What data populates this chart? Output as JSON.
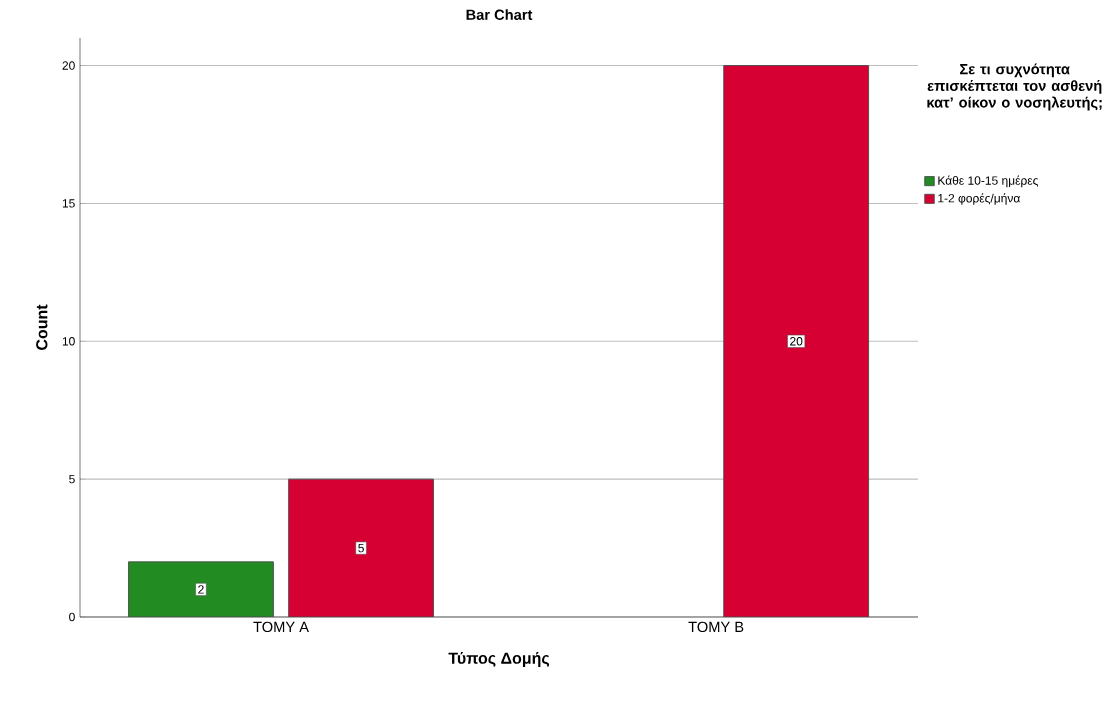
{
  "chart_data": {
    "type": "bar",
    "title": "Bar Chart",
    "xlabel": "Τύπος Δομής",
    "ylabel": "Count",
    "legend_title": "Σε τι συχνότητα επισκέπτεται τον ασθενή κατ’ οίκον ο νοσηλευτής;",
    "categories": [
      "ΤΟΜΥ Α",
      "ΤΟΜΥ Β"
    ],
    "series": [
      {
        "name": "Κάθε 10-15 ημέρες",
        "color": "#228b22",
        "values": [
          2,
          null
        ]
      },
      {
        "name": "1-2 φορές/μήνα",
        "color": "#d70033",
        "values": [
          5,
          20
        ]
      }
    ],
    "ylim": [
      0,
      21
    ],
    "yticks": [
      0,
      5,
      10,
      15,
      20
    ],
    "grid": "y",
    "legend": "top right",
    "data_labels": true
  }
}
